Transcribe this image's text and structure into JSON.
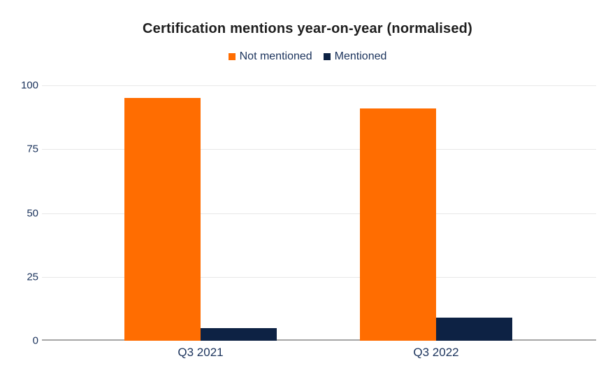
{
  "chart_data": {
    "type": "bar",
    "title": "Certification mentions year-on-year (normalised)",
    "categories": [
      "Q3 2021",
      "Q3 2022"
    ],
    "series": [
      {
        "name": "Not mentioned",
        "color": "#FF6D01",
        "values": [
          95,
          91
        ]
      },
      {
        "name": "Mentioned",
        "color": "#0D2244",
        "values": [
          5,
          9
        ]
      }
    ],
    "xlabel": "",
    "ylabel": "",
    "ylim": [
      0,
      100
    ],
    "yticks": [
      0,
      25,
      50,
      75,
      100
    ],
    "grid": true,
    "legend_position": "top"
  },
  "colors": {
    "background": "#FFFFFF",
    "title_text": "#1F1F1F",
    "axis_text": "#1B335C",
    "gridline": "#E8E8E8",
    "baseline": "#A6A6A6"
  }
}
